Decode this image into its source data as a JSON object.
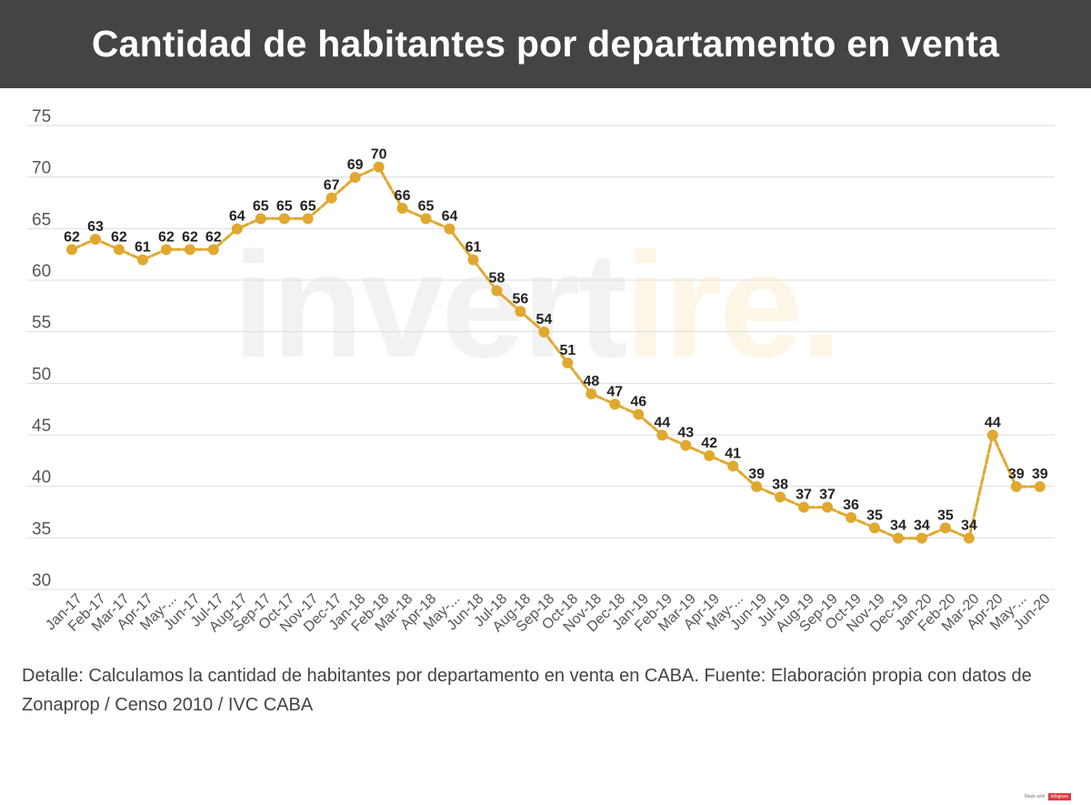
{
  "title": "Cantidad de habitantes por departamento en venta",
  "watermark": {
    "text_main": "invert",
    "text_accent": "ire.",
    "color_main": "#f2f2f2",
    "color_accent": "#fdf6e6"
  },
  "footnote": "Detalle: Calculamos la cantidad de habitantes por departamento en venta en CABA. Fuente: Elaboración propia con datos de Zonaprop / Censo 2010 / IVC CABA",
  "badge": {
    "prefix": "Made with",
    "brand": "infogram"
  },
  "colors": {
    "header_bg": "#444444",
    "line": "#e0a82e",
    "grid": "#dddddd",
    "axis_text": "#555555",
    "label_text": "#222222"
  },
  "chart_data": {
    "type": "line",
    "title": "Cantidad de habitantes por departamento en venta",
    "xlabel": "",
    "ylabel": "",
    "ylim": [
      30,
      75
    ],
    "yticks": [
      30,
      35,
      40,
      45,
      50,
      55,
      60,
      65,
      70,
      75
    ],
    "grid": true,
    "line_style": "dashed",
    "categories": [
      "Jan-17",
      "Feb-17",
      "Mar-17",
      "Apr-17",
      "May-...",
      "Jun-17",
      "Jul-17",
      "Aug-17",
      "Sep-17",
      "Oct-17",
      "Nov-17",
      "Dec-17",
      "Jan-18",
      "Feb-18",
      "Mar-18",
      "Apr-18",
      "May-...",
      "Jun-18",
      "Jul-18",
      "Aug-18",
      "Sep-18",
      "Oct-18",
      "Nov-18",
      "Dec-18",
      "Jan-19",
      "Feb-19",
      "Mar-19",
      "Apr-19",
      "May-...",
      "Jun-19",
      "Jul-19",
      "Aug-19",
      "Sep-19",
      "Oct-19",
      "Nov-19",
      "Dec-19",
      "Jan-20",
      "Feb-20",
      "Mar-20",
      "Apr-20",
      "May-...",
      "Jun-20"
    ],
    "values": [
      62,
      63,
      62,
      61,
      62,
      62,
      62,
      64,
      65,
      65,
      65,
      67,
      69,
      70,
      66,
      65,
      64,
      61,
      58,
      56,
      54,
      51,
      48,
      47,
      46,
      44,
      43,
      42,
      41,
      39,
      38,
      37,
      37,
      36,
      35,
      34,
      34,
      35,
      34,
      44,
      39,
      39
    ]
  }
}
